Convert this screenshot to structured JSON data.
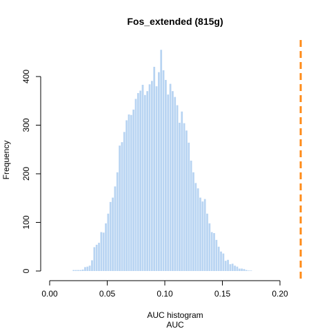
{
  "chart_data": {
    "type": "bar",
    "title": "Fos_extended (815g)",
    "xlabel": "AUC histogram",
    "xlabel2": "AUC",
    "ylabel": "Frequency",
    "xlim": [
      0.0,
      0.2
    ],
    "ylim": [
      0,
      400
    ],
    "xticks": [
      "0.00",
      "0.05",
      "0.10",
      "0.15",
      "0.20"
    ],
    "yticks": [
      "0",
      "100",
      "200",
      "300",
      "400"
    ],
    "grid": false,
    "bar_color": "#b8d4f2",
    "bin_start": 0.02,
    "bin_width": 0.002,
    "values": [
      2,
      2,
      2,
      2,
      3,
      8,
      9,
      11,
      22,
      49,
      54,
      58,
      80,
      79,
      98,
      118,
      142,
      151,
      174,
      203,
      258,
      265,
      286,
      310,
      322,
      321,
      332,
      354,
      366,
      371,
      383,
      362,
      370,
      384,
      391,
      420,
      380,
      409,
      455,
      413,
      393,
      363,
      385,
      370,
      358,
      341,
      305,
      328,
      304,
      289,
      264,
      227,
      203,
      181,
      170,
      151,
      143,
      148,
      118,
      98,
      80,
      78,
      64,
      50,
      40,
      36,
      21,
      23,
      14,
      15,
      11,
      9,
      5,
      5,
      4,
      2,
      1,
      1,
      0,
      0
    ],
    "reference_line": {
      "x": 0.218,
      "color": "#ff8c1a",
      "style": "dashed"
    }
  }
}
